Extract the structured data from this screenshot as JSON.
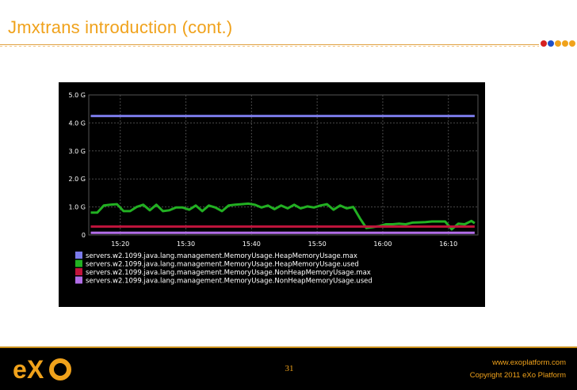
{
  "slide": {
    "title": "Jmxtrans introduction (cont.)",
    "page_number": "31",
    "footer_url": "www.exoplatform.com",
    "footer_copyright": "Copyright 2011 eXo Platform",
    "logo_text": "eXo"
  },
  "colors": {
    "title": "#f0a21b",
    "dots": [
      "#d62020",
      "#1f4fc7",
      "#f0a21b",
      "#f0a21b",
      "#f0a21b"
    ]
  },
  "chart_data": {
    "type": "line",
    "title": "",
    "xlabel": "",
    "ylabel": "",
    "x_tick_labels": [
      "15:20",
      "15:30",
      "15:40",
      "15:50",
      "16:00",
      "16:10"
    ],
    "x_tick_values": [
      20,
      30,
      40,
      50,
      60,
      70
    ],
    "xlim": [
      15.2,
      74.5
    ],
    "y_tick_labels": [
      "0",
      "1.0 G",
      "2.0 G",
      "3.0 G",
      "4.0 G",
      "5.0 G"
    ],
    "y_tick_values": [
      0,
      1,
      2,
      3,
      4,
      5
    ],
    "ylim": [
      0,
      5
    ],
    "grid": true,
    "legend_position": "bottom",
    "series": [
      {
        "name": "servers.w2.1099.java.lang.management.MemoryUsage.HeapMemoryUsage.max",
        "color": "#7b7bea",
        "x": [
          15.5,
          74
        ],
        "y": [
          4.25,
          4.25
        ]
      },
      {
        "name": "servers.w2.1099.java.lang.management.MemoryUsage.HeapMemoryUsage.used",
        "color": "#22b022",
        "x": [
          15.5,
          16.5,
          17.5,
          18.5,
          19.5,
          20.5,
          21.5,
          22.5,
          23.5,
          24.5,
          25.5,
          26.5,
          27.5,
          28.5,
          29.5,
          30.5,
          31.5,
          32.5,
          33.5,
          34.5,
          35.5,
          36.5,
          37.5,
          38.5,
          39.5,
          40.5,
          41.5,
          42.5,
          43.5,
          44.5,
          45.5,
          46.5,
          47.5,
          48.5,
          49.5,
          50.5,
          51.5,
          52.5,
          53.5,
          54.5,
          55.5,
          56.5,
          57.5,
          58.5,
          59.5,
          60.5,
          61.5,
          62.5,
          63.5,
          64.5,
          65.5,
          66.5,
          67.5,
          68.5,
          69.5,
          70.5,
          71.5,
          72.5,
          73.5,
          74
        ],
        "y": [
          0.8,
          0.8,
          1.05,
          1.08,
          1.1,
          0.85,
          0.85,
          1.0,
          1.08,
          0.88,
          1.08,
          0.85,
          0.88,
          0.98,
          0.98,
          0.9,
          1.05,
          0.85,
          1.05,
          0.98,
          0.85,
          1.05,
          1.08,
          1.1,
          1.12,
          1.08,
          0.98,
          1.05,
          0.92,
          1.05,
          0.95,
          1.08,
          0.95,
          1.02,
          0.98,
          1.05,
          1.1,
          0.9,
          1.05,
          0.95,
          1.0,
          0.6,
          0.25,
          0.28,
          0.32,
          0.38,
          0.38,
          0.4,
          0.38,
          0.44,
          0.45,
          0.46,
          0.48,
          0.48,
          0.48,
          0.2,
          0.4,
          0.38,
          0.5,
          0.42
        ]
      },
      {
        "name": "servers.w2.1099.java.lang.management.MemoryUsage.NonHeapMemoryUsage.max",
        "color": "#c0143c",
        "x": [
          15.5,
          74
        ],
        "y": [
          0.3,
          0.3
        ]
      },
      {
        "name": "servers.w2.1099.java.lang.management.MemoryUsage.NonHeapMemoryUsage.used",
        "color": "#b26ee8",
        "x": [
          15.5,
          74
        ],
        "y": [
          0.08,
          0.08
        ]
      }
    ]
  }
}
